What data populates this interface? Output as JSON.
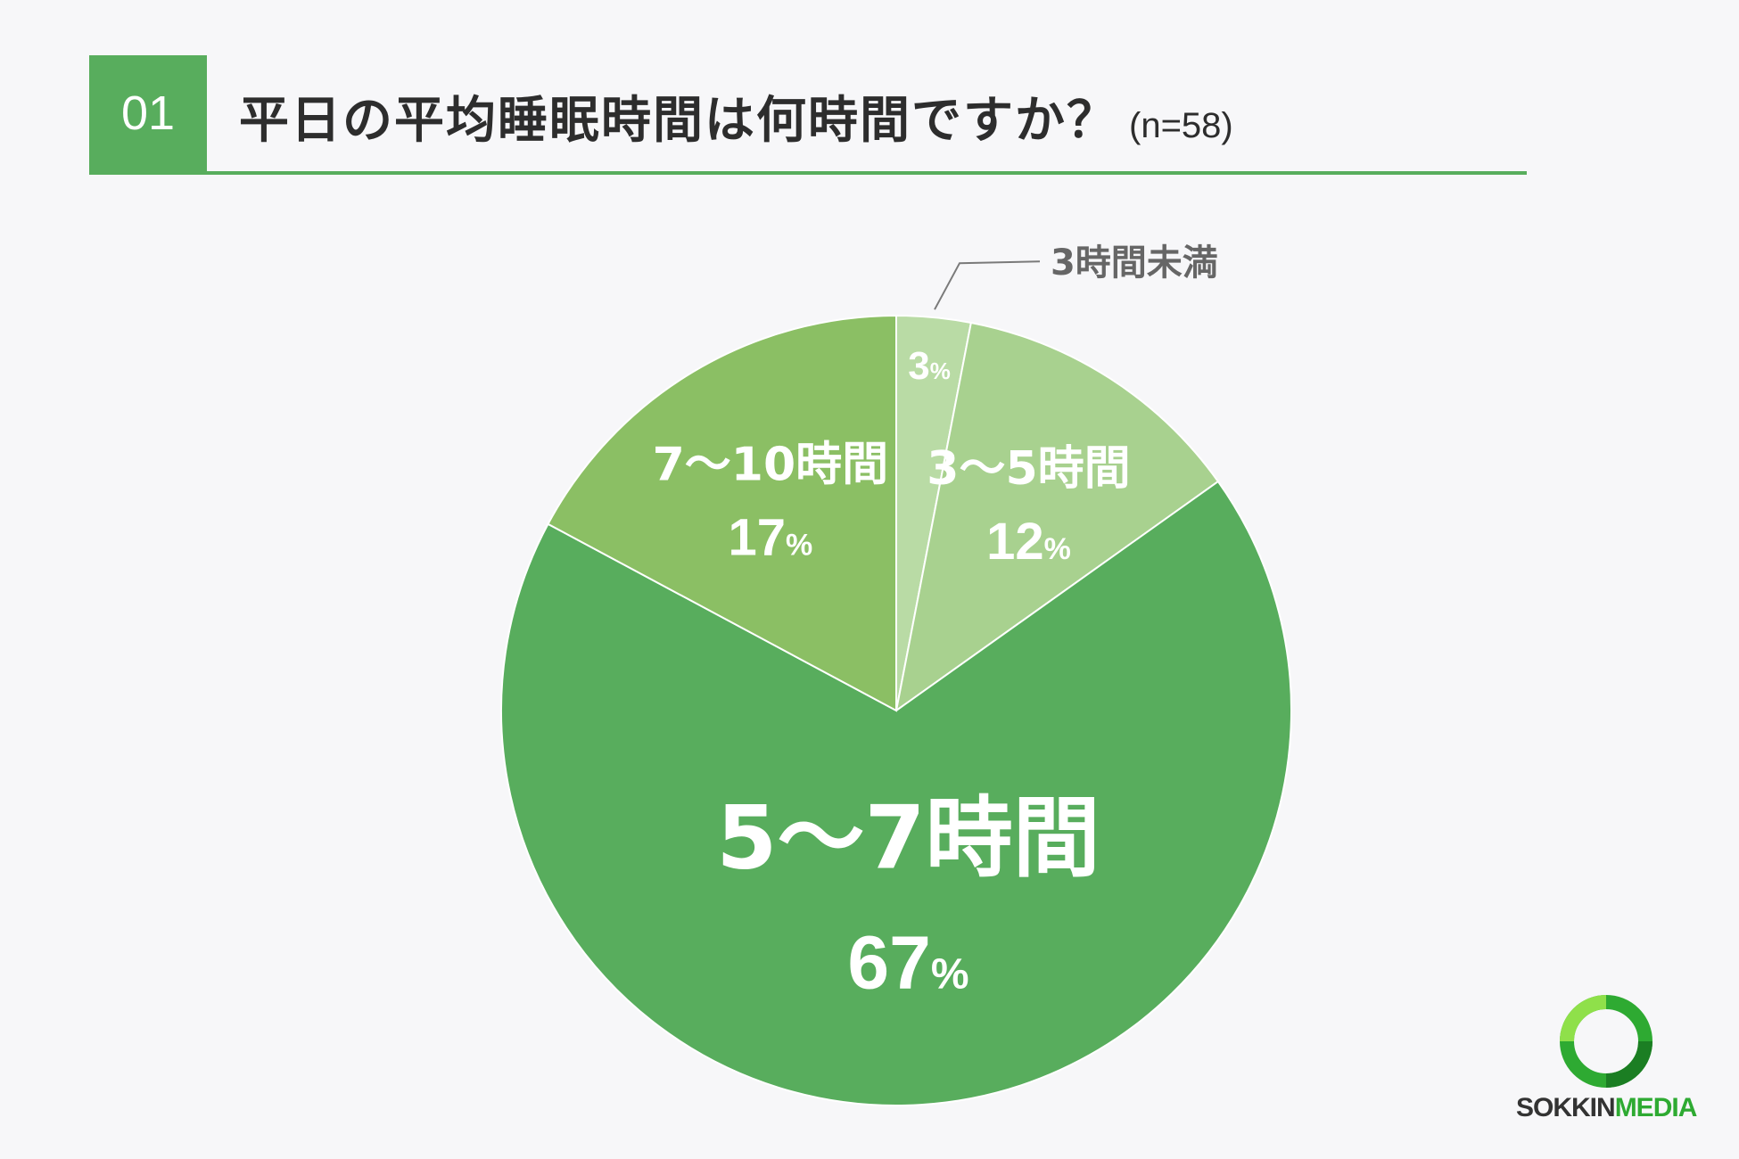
{
  "header": {
    "number": "01",
    "title": "平日の平均睡眠時間は何時間ですか？",
    "sample": "(n=58)"
  },
  "chart_data": {
    "type": "pie",
    "slices": [
      {
        "label": "3時間未満",
        "value": 3,
        "value_text": "3",
        "color": "#b9dba5"
      },
      {
        "label": "3〜5時間",
        "value": 12,
        "value_text": "12",
        "color": "#a8d18f"
      },
      {
        "label": "5〜7時間",
        "value": 67,
        "value_text": "67",
        "color": "#58ad5d"
      },
      {
        "label": "7〜10時間",
        "value": 17,
        "value_text": "17",
        "color": "#8bbf64"
      }
    ],
    "percent_sign": "%",
    "start": "top",
    "direction": "clockwise"
  },
  "logo": {
    "brand_a": "SOKKIN",
    "brand_b": "MEDIA"
  },
  "colors": {
    "accent": "#58ad5d",
    "logo_green": "#2eaa32"
  }
}
